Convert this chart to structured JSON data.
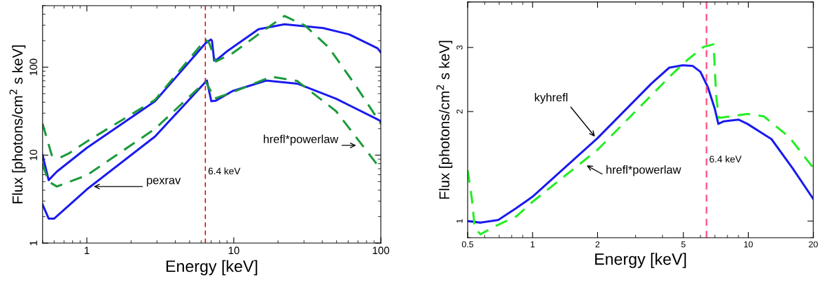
{
  "chart_data": [
    {
      "type": "line",
      "xlabel": "Energy [keV]",
      "ylabel": "Flux [photons/cm$^{2}$ s keV]",
      "log": "xy",
      "xlim": [
        0.5,
        100
      ],
      "ylim": [
        1,
        500
      ],
      "xticks": [
        1,
        10,
        100
      ],
      "yticks": [
        1,
        10,
        100
      ],
      "series": [
        {
          "color": "#1a1aee",
          "line_style": "solid",
          "x": [
            0.5,
            0.55,
            0.625,
            1,
            2.91,
            6.42,
            6.97,
            7.1,
            7.35,
            7.7,
            9.06,
            14.7,
            22.1,
            40.5,
            60.7,
            95,
            100
          ],
          "values": [
            10,
            5.2,
            6.5,
            12.1,
            41,
            187,
            206,
            200,
            119,
            122,
            153,
            269,
            307,
            278,
            236,
            164,
            147
          ]
        },
        {
          "color": "#1a9a3a",
          "line_style": "dashed",
          "x": [
            0.5,
            0.577,
            0.651,
            0.765,
            1,
            2.91,
            6.42,
            6.8,
            7.55,
            9.8,
            14.7,
            22.1,
            30.5,
            44,
            66,
            100
          ],
          "values": [
            22.7,
            10,
            9.3,
            10.6,
            14.3,
            42.4,
            206,
            187,
            116,
            144,
            236,
            382,
            297,
            169,
            65,
            22.7
          ]
        },
        {
          "color": "#1a1aee",
          "line_style": "solid",
          "x": [
            0.5,
            0.55,
            0.6,
            1,
            2.91,
            6.55,
            7.03,
            7.55,
            9.8,
            16.6,
            27,
            49.6,
            97,
            100
          ],
          "values": [
            2.74,
            1.9,
            1.9,
            4.08,
            16.3,
            70.5,
            41,
            41.6,
            53.5,
            70.5,
            65,
            43.8,
            25,
            24.2
          ]
        },
        {
          "color": "#1a9a3a",
          "line_style": "dashed",
          "x": [
            0.5,
            0.55,
            0.625,
            1,
            2.91,
            6.42,
            6.97,
            7.4,
            9.8,
            18,
            27,
            49.6,
            100
          ],
          "values": [
            7.9,
            5.0,
            4.4,
            5.9,
            19.9,
            68.6,
            53.4,
            43.9,
            51.8,
            78,
            69.6,
            31.6,
            6.9
          ]
        }
      ],
      "ref_lines": [
        {
          "axis": "x",
          "value": 6.4,
          "label": "6.4 keV",
          "color": "#ee1111",
          "line_style": "dashed"
        }
      ],
      "annotations": [
        {
          "text": "pexrav",
          "x": 1.08,
          "y": 4.4
        },
        {
          "text": "hrefl*powerlaw",
          "x": 70,
          "y": 12.9
        }
      ]
    },
    {
      "type": "line",
      "xlabel": "Energy [keV]",
      "ylabel": "Flux [photons/cm$^{2}$ s keV]",
      "log": "xy",
      "xlim": [
        0.5,
        20
      ],
      "ylim": [
        0.9,
        4.0
      ],
      "xticks": [
        0.5,
        1,
        2,
        5,
        10,
        20
      ],
      "yticks": [
        1,
        2,
        3
      ],
      "series": [
        {
          "color": "#1a1aee",
          "line_style": "solid",
          "x": [
            0.5,
            0.574,
            0.693,
            0.84,
            1,
            2,
            3.56,
            4.3,
            4.97,
            5.52,
            6.0,
            6.5,
            7.0,
            7.26,
            7.7,
            9.0,
            9.9,
            12.8,
            16.0,
            20
          ],
          "values": [
            1.0,
            0.99,
            1.007,
            1.085,
            1.167,
            1.69,
            2.39,
            2.64,
            2.68,
            2.67,
            2.57,
            2.33,
            2.03,
            1.85,
            1.88,
            1.9,
            1.85,
            1.68,
            1.4,
            1.15
          ]
        },
        {
          "color": "#22ee22",
          "line_style": "dashed",
          "x": [
            0.5,
            0.522,
            0.54,
            0.574,
            0.675,
            0.84,
            1,
            2,
            4.4,
            5.25,
            6.2,
            6.9,
            7.1,
            7.3,
            9.9,
            11.8,
            15.5,
            20
          ],
          "values": [
            1.38,
            1.16,
            0.955,
            0.92,
            0.97,
            1.03,
            1.13,
            1.57,
            2.52,
            2.78,
            3.01,
            3.06,
            2.2,
            1.92,
            1.97,
            1.94,
            1.7,
            1.4
          ]
        }
      ],
      "ref_lines": [
        {
          "axis": "x",
          "value": 6.4,
          "label": "6.4 keV",
          "color": "#ff5c8a",
          "line_style": "dashed"
        }
      ],
      "annotations": [
        {
          "text": "kyhrefl",
          "x": 1.97,
          "y": 1.69
        },
        {
          "text": "hrefl*powerlaw",
          "x": 1.75,
          "y": 1.43
        }
      ]
    }
  ]
}
